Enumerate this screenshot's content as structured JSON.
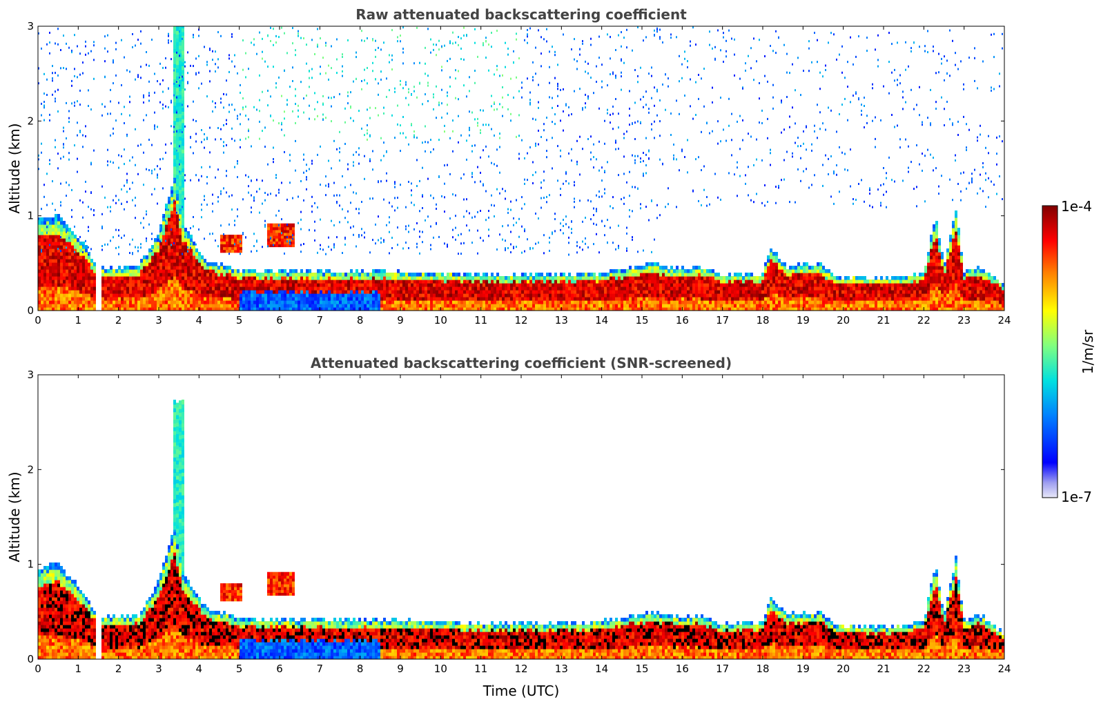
{
  "chart_data": [
    {
      "type": "heatmap",
      "title": "Raw attenuated backscattering coefficient",
      "xlabel": "",
      "ylabel": "Altitude (km)",
      "x_ticks": [
        "0",
        "1",
        "2",
        "3",
        "4",
        "5",
        "6",
        "7",
        "8",
        "9",
        "10",
        "11",
        "12",
        "13",
        "14",
        "15",
        "16",
        "17",
        "18",
        "19",
        "20",
        "21",
        "22",
        "23",
        "24"
      ],
      "y_ticks": [
        "0",
        "1",
        "2",
        "3"
      ],
      "xlim": [
        0,
        24
      ],
      "ylim": [
        0,
        3
      ],
      "screened": false,
      "boundary_layer_top_km": [
        {
          "t": 0.0,
          "z": 0.95
        },
        {
          "t": 0.5,
          "z": 1.0
        },
        {
          "t": 1.2,
          "z": 0.65
        },
        {
          "t": 1.5,
          "z": 0.42
        },
        {
          "t": 2.5,
          "z": 0.45
        },
        {
          "t": 3.0,
          "z": 0.8
        },
        {
          "t": 3.4,
          "z": 1.4
        },
        {
          "t": 3.6,
          "z": 0.9
        },
        {
          "t": 4.2,
          "z": 0.5
        },
        {
          "t": 5.0,
          "z": 0.42
        },
        {
          "t": 6.0,
          "z": 0.4
        },
        {
          "t": 8.0,
          "z": 0.4
        },
        {
          "t": 10.0,
          "z": 0.38
        },
        {
          "t": 12.0,
          "z": 0.36
        },
        {
          "t": 14.0,
          "z": 0.38
        },
        {
          "t": 15.2,
          "z": 0.48
        },
        {
          "t": 16.0,
          "z": 0.42
        },
        {
          "t": 16.5,
          "z": 0.45
        },
        {
          "t": 17.0,
          "z": 0.35
        },
        {
          "t": 18.0,
          "z": 0.38
        },
        {
          "t": 18.2,
          "z": 0.65
        },
        {
          "t": 18.6,
          "z": 0.45
        },
        {
          "t": 19.4,
          "z": 0.48
        },
        {
          "t": 19.8,
          "z": 0.35
        },
        {
          "t": 21.0,
          "z": 0.32
        },
        {
          "t": 22.0,
          "z": 0.38
        },
        {
          "t": 22.3,
          "z": 1.0
        },
        {
          "t": 22.5,
          "z": 0.45
        },
        {
          "t": 22.8,
          "z": 1.05
        },
        {
          "t": 23.0,
          "z": 0.4
        },
        {
          "t": 23.4,
          "z": 0.45
        },
        {
          "t": 24.0,
          "z": 0.25
        }
      ],
      "aerosol_layers": [
        {
          "t_start": 4.5,
          "t_end": 5.1,
          "z_bottom_km": 0.62,
          "z_top_km": 0.78
        },
        {
          "t_start": 5.7,
          "t_end": 6.4,
          "z_bottom_km": 0.68,
          "z_top_km": 0.9
        }
      ]
    },
    {
      "type": "heatmap",
      "title": "Attenuated backscattering coefficient (SNR-screened)",
      "xlabel": "Time (UTC)",
      "ylabel": "Altitude (km)",
      "x_ticks": [
        "0",
        "1",
        "2",
        "3",
        "4",
        "5",
        "6",
        "7",
        "8",
        "9",
        "10",
        "11",
        "12",
        "13",
        "14",
        "15",
        "16",
        "17",
        "18",
        "19",
        "20",
        "21",
        "22",
        "23",
        "24"
      ],
      "y_ticks": [
        "0",
        "1",
        "2",
        "3"
      ],
      "xlim": [
        0,
        24
      ],
      "ylim": [
        0,
        3
      ],
      "screened": true
    }
  ],
  "colorbar": {
    "label": "1/m/sr",
    "max_label": "1e-4",
    "min_label": "1e-7",
    "scale": "log",
    "vmin": 1e-07,
    "vmax": 0.0001,
    "colormap": [
      "#e8e8f8",
      "#a0a0f0",
      "#0000ff",
      "#0080ff",
      "#00e0e0",
      "#80ff80",
      "#ffff00",
      "#ff8000",
      "#ff0000",
      "#800000"
    ]
  }
}
